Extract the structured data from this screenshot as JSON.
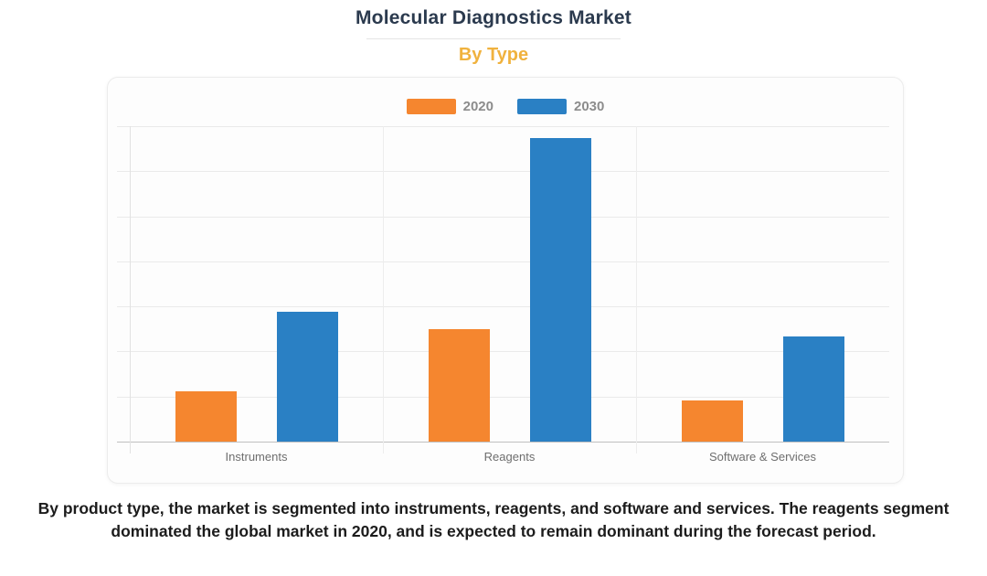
{
  "page": {
    "title": "Molecular Diagnostics Market",
    "subtitle": "By Type",
    "caption": "By product type, the market is segmented into instruments, reagents, and software and services. The reagents segment dominated the global market in 2020, and is expected to remain dominant during the forecast period."
  },
  "colors": {
    "series_2020": "#F5862F",
    "series_2030": "#2A80C4",
    "title_text": "#2B3A4E",
    "subtitle_text": "#F0B23E",
    "legend_text": "#8C8C8C",
    "axis_label_text": "#6E6E6E",
    "gridline": "#EAEAEA",
    "axis_line": "#BFBFBF"
  },
  "chart_data": {
    "type": "bar",
    "title": "Molecular Diagnostics Market",
    "subtitle": "By Type",
    "categories": [
      "Instruments",
      "Reagents",
      "Software & Services"
    ],
    "series": [
      {
        "name": "2020",
        "color": "#F5862F",
        "values": [
          1.12,
          2.5,
          0.91
        ]
      },
      {
        "name": "2030",
        "color": "#2A80C4",
        "values": [
          2.88,
          6.74,
          2.33
        ]
      }
    ],
    "ylim": [
      0,
      7
    ],
    "y_gridline_count": 7,
    "y_axis_labels_visible": false,
    "grid": "horizontal gridlines with category separators",
    "legend_position": "top-center",
    "note": "values estimated from unlabeled gridline units"
  }
}
